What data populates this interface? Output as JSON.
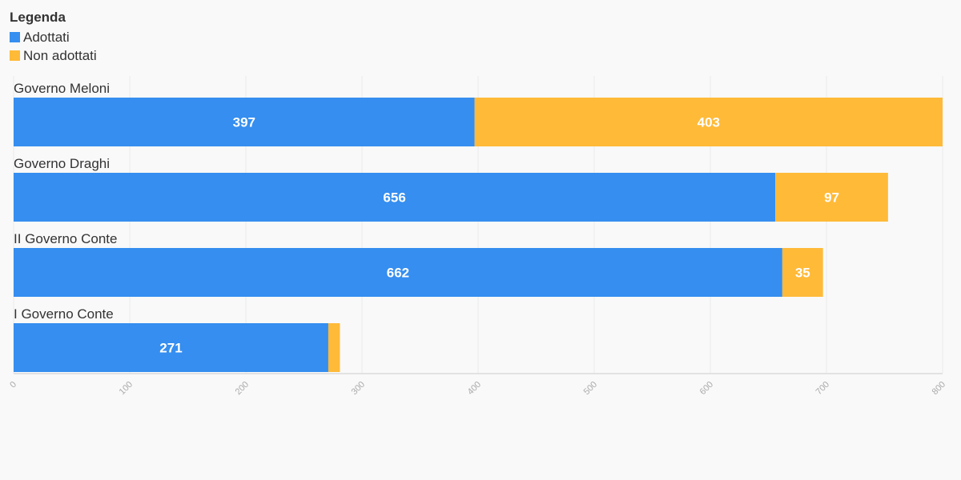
{
  "chart_data": {
    "type": "bar",
    "orientation": "horizontal",
    "stacked": true,
    "legend_title": "Legenda",
    "categories": [
      "Governo Meloni",
      "Governo Draghi",
      "II Governo Conte",
      "I Governo Conte"
    ],
    "series": [
      {
        "name": "Adottati",
        "color": "#358ef0",
        "values": [
          397,
          656,
          662,
          271
        ],
        "labels": [
          "397",
          "656",
          "662",
          "271"
        ]
      },
      {
        "name": "Non adottati",
        "color": "#ffba38",
        "values": [
          403,
          97,
          35,
          10
        ],
        "labels": [
          "403",
          "97",
          "35",
          ""
        ]
      }
    ],
    "xlim": [
      0,
      800
    ],
    "ticks": [
      "0",
      "100",
      "200",
      "300",
      "400",
      "500",
      "600",
      "700",
      "800"
    ],
    "grid": true,
    "legend_position": "top-left"
  }
}
